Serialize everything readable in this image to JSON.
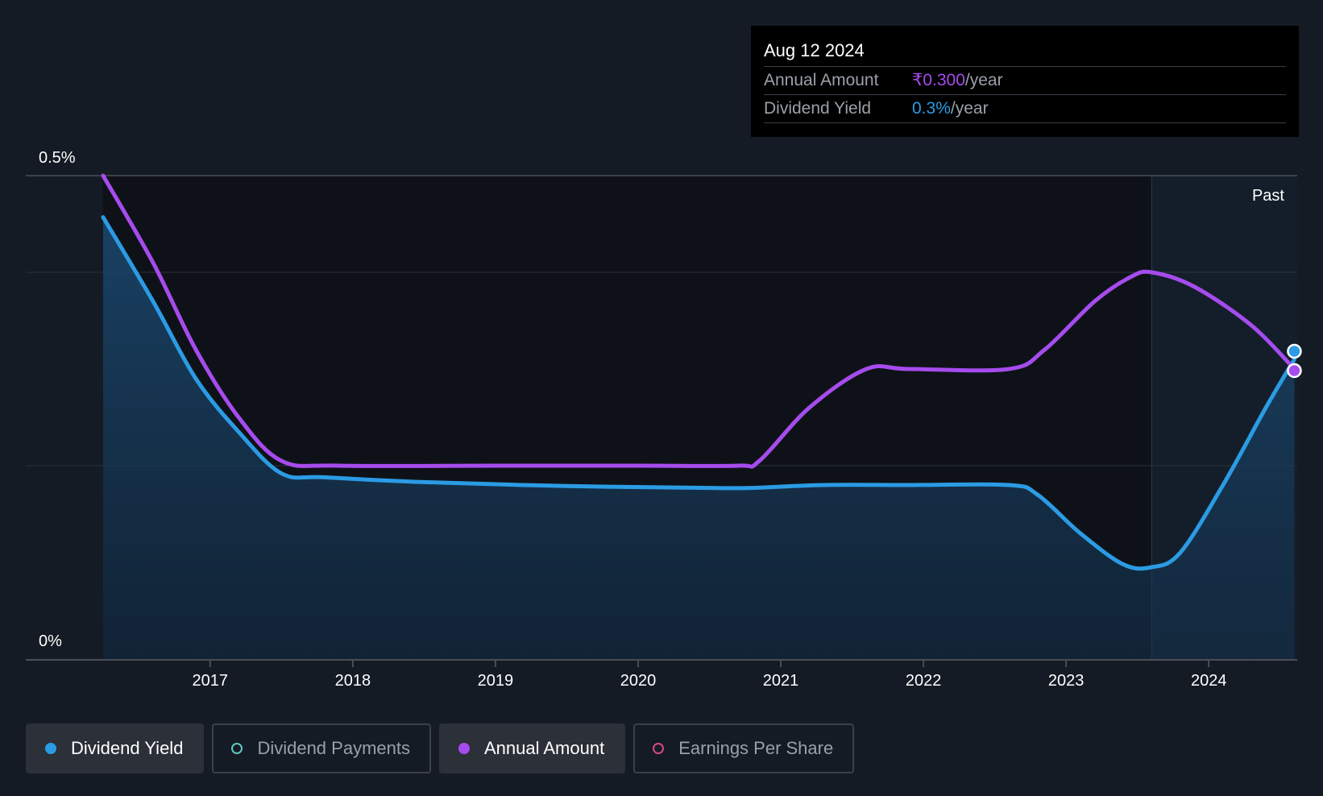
{
  "tooltip": {
    "date": "Aug 12 2024",
    "annual_label": "Annual Amount",
    "annual_value": "₹0.300",
    "annual_unit": "/year",
    "yield_label": "Dividend Yield",
    "yield_value": "0.3%",
    "yield_unit": "/year"
  },
  "past_label": "Past",
  "legend": [
    {
      "label": "Dividend Yield",
      "color": "#2b9be4",
      "active": true,
      "filled": true
    },
    {
      "label": "Dividend Payments",
      "color": "#5ec8c0",
      "active": false,
      "filled": false
    },
    {
      "label": "Annual Amount",
      "color": "#a64bed",
      "active": true,
      "filled": true
    },
    {
      "label": "Earnings Per Share",
      "color": "#d9487d",
      "active": false,
      "filled": false
    }
  ],
  "chart_data": {
    "type": "line",
    "y_tick_labels": [
      "0.5%",
      "0%"
    ],
    "ylim": [
      0,
      0.5
    ],
    "xlim": [
      2015.9,
      2024.62
    ],
    "x_ticks": [
      2017,
      2018,
      2019,
      2020,
      2021,
      2022,
      2023,
      2024
    ],
    "x_tick_labels": [
      "2017",
      "2018",
      "2019",
      "2020",
      "2021",
      "2022",
      "2023",
      "2024"
    ],
    "future_start": 2023.6,
    "colors": {
      "yield": "#2b9be4",
      "annual": "#a64bed"
    },
    "series": [
      {
        "name": "Dividend Yield",
        "key": "yield",
        "area": true,
        "points": [
          [
            2016.25,
            0.457
          ],
          [
            2016.6,
            0.37
          ],
          [
            2016.9,
            0.29
          ],
          [
            2017.2,
            0.235
          ],
          [
            2017.5,
            0.192
          ],
          [
            2017.8,
            0.188
          ],
          [
            2018.5,
            0.183
          ],
          [
            2019.5,
            0.179
          ],
          [
            2020.5,
            0.177
          ],
          [
            2020.8,
            0.177
          ],
          [
            2021.3,
            0.18
          ],
          [
            2021.9,
            0.18
          ],
          [
            2022.6,
            0.18
          ],
          [
            2022.8,
            0.17
          ],
          [
            2023.1,
            0.13
          ],
          [
            2023.4,
            0.098
          ],
          [
            2023.6,
            0.095
          ],
          [
            2023.8,
            0.11
          ],
          [
            2024.1,
            0.18
          ],
          [
            2024.4,
            0.26
          ],
          [
            2024.6,
            0.31
          ]
        ]
      },
      {
        "name": "Annual Amount",
        "key": "annual",
        "area": false,
        "points": [
          [
            2016.25,
            0.5
          ],
          [
            2016.6,
            0.41
          ],
          [
            2016.9,
            0.32
          ],
          [
            2017.2,
            0.25
          ],
          [
            2017.5,
            0.205
          ],
          [
            2017.9,
            0.2
          ],
          [
            2019.0,
            0.2
          ],
          [
            2020.0,
            0.2
          ],
          [
            2020.7,
            0.2
          ],
          [
            2020.85,
            0.205
          ],
          [
            2021.2,
            0.26
          ],
          [
            2021.6,
            0.3
          ],
          [
            2021.9,
            0.3
          ],
          [
            2022.6,
            0.3
          ],
          [
            2022.85,
            0.32
          ],
          [
            2023.2,
            0.37
          ],
          [
            2023.45,
            0.395
          ],
          [
            2023.6,
            0.4
          ],
          [
            2023.9,
            0.385
          ],
          [
            2024.3,
            0.345
          ],
          [
            2024.6,
            0.3
          ]
        ]
      }
    ]
  }
}
